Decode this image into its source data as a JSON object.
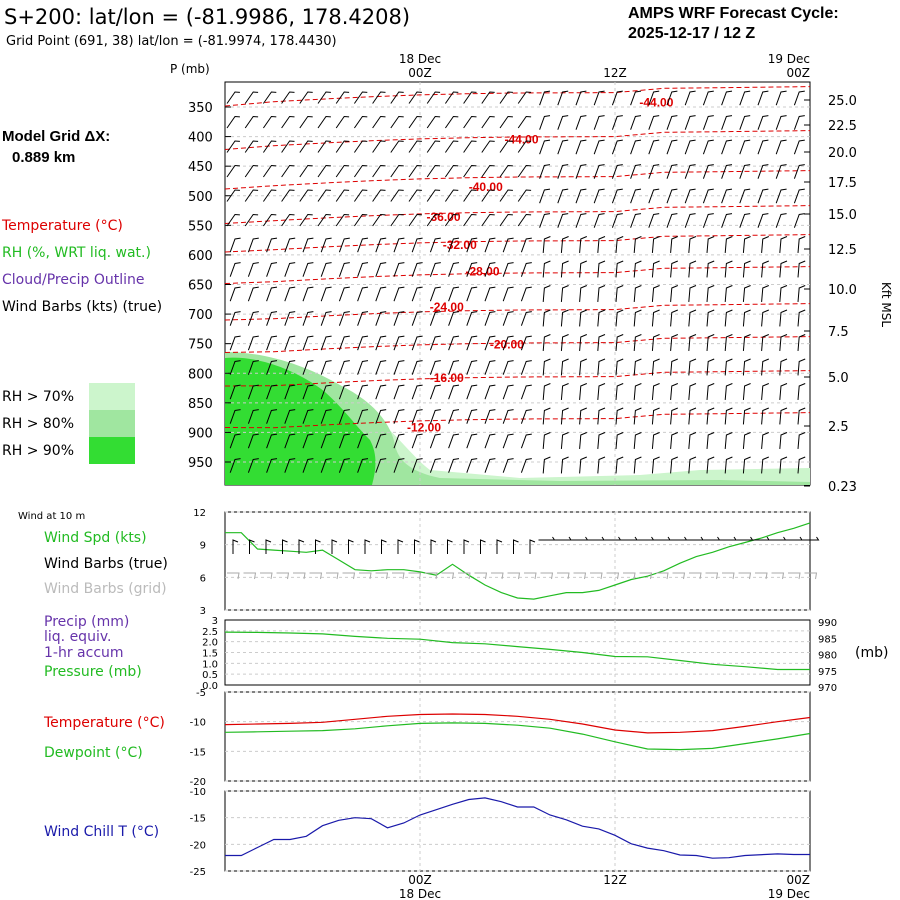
{
  "header": {
    "title": "S+200:  lat/lon = (-81.9986, 178.4208)",
    "subtitle": "Grid Point (691, 38) lat/lon = (-81.9974, 178.4430)",
    "cycle_line1": "AMPS WRF Forecast Cycle:",
    "cycle_line2": "2025-12-17 / 12  Z"
  },
  "grid_info": {
    "label": "Model Grid ΔX:",
    "value": "0.889 km"
  },
  "legend": {
    "temperature": "Temperature (°C)",
    "rh": "RH (%, WRT liq. wat.)",
    "cloud": "Cloud/Precip Outline",
    "wind_barbs": "Wind Barbs (kts) (true)",
    "rh_bins": [
      {
        "label": "RH > 70%",
        "color": "#ccf5cc"
      },
      {
        "label": "RH > 80%",
        "color": "#a0e6a0"
      },
      {
        "label": "RH > 90%",
        "color": "#33dd33"
      }
    ]
  },
  "colors": {
    "temp": "#dd0000",
    "green": "#22bb22",
    "purple": "#6633aa",
    "blue": "#1a1aaa",
    "grey": "#aaaaaa"
  },
  "chart_data": [
    {
      "type": "heatmap",
      "name": "upper-air-cross-section",
      "ylabel_left": "P (mb)",
      "ylabel_right": "Kft MSL",
      "pressure_ticks": [
        350,
        400,
        450,
        500,
        550,
        600,
        650,
        700,
        750,
        800,
        850,
        900,
        950
      ],
      "height_ticks": [
        "25.0",
        "22.5",
        "20.0",
        "17.5",
        "15.0",
        "12.5",
        "10.0",
        "7.5",
        "5.0",
        "2.5",
        "0.23"
      ],
      "time_ticks": [
        {
          "label": "00Z",
          "date": "18 Dec",
          "hour": 12
        },
        {
          "label": "12Z",
          "date": "",
          "hour": 24
        },
        {
          "label": "00Z",
          "date": "19 Dec",
          "hour": 36
        }
      ],
      "xlim_hours": [
        0,
        36
      ],
      "isotherms": [
        {
          "label": "-44.00",
          "hour": 25.5,
          "p": 342
        },
        {
          "label": "-44.00",
          "hour": 17.2,
          "p": 405
        },
        {
          "label": "-40.00",
          "hour": 15.0,
          "p": 485
        },
        {
          "label": "-36.00",
          "hour": 12.4,
          "p": 536
        },
        {
          "label": "-32.00",
          "hour": 13.4,
          "p": 583
        },
        {
          "label": "-28.00",
          "hour": 14.8,
          "p": 628
        },
        {
          "label": "-24.00",
          "hour": 12.6,
          "p": 688
        },
        {
          "label": "-20.00",
          "hour": 16.3,
          "p": 751
        },
        {
          "label": "-16.00",
          "hour": 12.6,
          "p": 808
        },
        {
          "label": "-12.00",
          "hour": 11.2,
          "p": 892
        }
      ]
    },
    {
      "type": "line",
      "name": "wind-10m",
      "panel_label": "Wind at 10 m",
      "series_labels": {
        "spd": "Wind Spd (kts)",
        "barbs_true": "Wind Barbs (true)",
        "barbs_grid": "Wind Barbs (grid)"
      },
      "yticks": [
        3,
        6,
        9,
        12
      ],
      "ylim": [
        3,
        12
      ],
      "x_hours": [
        0,
        1,
        2,
        3,
        4,
        5,
        6,
        7,
        8,
        9,
        10,
        11,
        12,
        13,
        14,
        15,
        16,
        17,
        18,
        19,
        20,
        21,
        22,
        23,
        24,
        25,
        26,
        27,
        28,
        29,
        30,
        31,
        32,
        33,
        34,
        35,
        36
      ],
      "wind_speed": [
        10.1,
        10.1,
        8.6,
        8.5,
        8.4,
        8.3,
        8.5,
        7.6,
        6.7,
        6.6,
        6.7,
        6.7,
        6.5,
        6.2,
        7.2,
        6.2,
        5.3,
        4.6,
        4.1,
        4.0,
        4.3,
        4.6,
        4.6,
        4.8,
        5.3,
        5.8,
        6.1,
        6.6,
        7.3,
        7.9,
        8.3,
        8.8,
        9.2,
        9.6,
        10.1,
        10.5,
        11.0
      ]
    },
    {
      "type": "line",
      "name": "precip-pressure",
      "series_labels": {
        "precip": "Precip (mm)",
        "precip2": "liq. equiv.",
        "precip3": "1-hr accum",
        "pressure": "Pressure (mb)"
      },
      "precip_ticks": [
        "0.0",
        "0.5",
        "1.0",
        "1.5",
        "2.0",
        "2.5",
        "3"
      ],
      "pressure_ticks": [
        970,
        975,
        980,
        985,
        990
      ],
      "right_unit": "(mb)",
      "x_hours": [
        0,
        2,
        4,
        6,
        8,
        10,
        12,
        14,
        16,
        18,
        20,
        22,
        24,
        26,
        28,
        30,
        32,
        34,
        36
      ],
      "pressure": [
        986.6,
        986.5,
        986.3,
        986.0,
        985.2,
        984.6,
        984.3,
        983.2,
        982.8,
        981.9,
        981.0,
        980.0,
        978.7,
        978.6,
        977.4,
        976.2,
        975.4,
        974.5,
        974.5
      ],
      "precip": [
        0,
        0,
        0,
        0,
        0,
        0,
        0,
        0,
        0,
        0,
        0,
        0,
        0,
        0,
        0,
        0,
        0,
        0,
        0
      ]
    },
    {
      "type": "line",
      "name": "temp-dewpoint",
      "series_labels": {
        "temp": "Temperature (°C)",
        "dew": "Dewpoint (°C)"
      },
      "yticks": [
        -20,
        -15,
        -10,
        -5
      ],
      "ylim": [
        -20,
        -5
      ],
      "x_hours": [
        0,
        2,
        4,
        6,
        8,
        10,
        12,
        14,
        16,
        18,
        20,
        22,
        24,
        26,
        28,
        30,
        32,
        34,
        36
      ],
      "temperature": [
        -10.5,
        -10.4,
        -10.3,
        -10.1,
        -9.6,
        -9.1,
        -8.8,
        -8.7,
        -8.8,
        -9.1,
        -9.6,
        -10.4,
        -11.4,
        -11.9,
        -11.8,
        -11.5,
        -10.8,
        -10.0,
        -9.3
      ],
      "dewpoint": [
        -11.8,
        -11.7,
        -11.6,
        -11.5,
        -11.2,
        -10.7,
        -10.3,
        -10.2,
        -10.3,
        -10.6,
        -11.1,
        -12.1,
        -13.4,
        -14.6,
        -14.7,
        -14.5,
        -13.7,
        -12.9,
        -12.0
      ]
    },
    {
      "type": "line",
      "name": "wind-chill",
      "series_labels": {
        "chill": "Wind Chill T (°C)"
      },
      "yticks": [
        -25,
        -20,
        -15,
        -10
      ],
      "ylim": [
        -25,
        -10
      ],
      "x_hours": [
        0,
        1,
        2,
        3,
        4,
        5,
        6,
        7,
        8,
        9,
        10,
        11,
        12,
        13,
        14,
        15,
        16,
        17,
        18,
        19,
        20,
        21,
        22,
        23,
        24,
        25,
        26,
        27,
        28,
        29,
        30,
        31,
        32,
        34,
        35,
        36
      ],
      "wind_chill": [
        -22.1,
        -22.1,
        -20.6,
        -19.1,
        -19.1,
        -18.5,
        -16.5,
        -15.5,
        -15.0,
        -15.2,
        -16.9,
        -16.0,
        -14.5,
        -13.5,
        -12.5,
        -11.6,
        -11.3,
        -12.0,
        -13.0,
        -13.0,
        -14.5,
        -15.4,
        -16.6,
        -17.1,
        -18.3,
        -19.9,
        -20.7,
        -21.2,
        -22.0,
        -22.1,
        -22.6,
        -22.5,
        -22.1,
        -21.8,
        -21.9,
        -21.9
      ]
    }
  ]
}
